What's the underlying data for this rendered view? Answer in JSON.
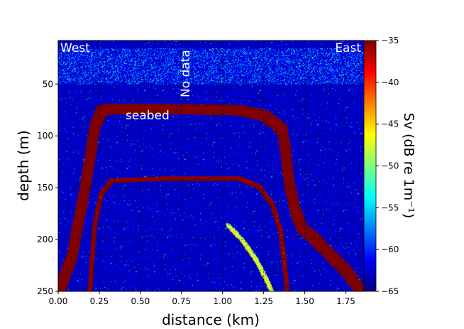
{
  "chart_data": {
    "type": "heatmap",
    "xlabel": "distance (km)",
    "ylabel": "depth (m)",
    "xlim": [
      0,
      1.86
    ],
    "ylim": [
      250,
      8
    ],
    "xticks": [
      "0.00",
      "0.25",
      "0.50",
      "0.75",
      "1.00",
      "1.25",
      "1.50",
      "1.75"
    ],
    "xtick_values": [
      0,
      0.25,
      0.5,
      0.75,
      1.0,
      1.25,
      1.5,
      1.75
    ],
    "yticks": [
      "50",
      "100",
      "150",
      "200",
      "250"
    ],
    "ytick_values": [
      50,
      100,
      150,
      200,
      250
    ],
    "grid": true,
    "colormap": "jet",
    "colorbar": {
      "label": "Sv (dB re 1m⁻¹)",
      "range": [
        -65,
        -35
      ],
      "ticks": [
        "−35",
        "−40",
        "−45",
        "−50",
        "−55",
        "−60",
        "−65"
      ],
      "tick_values": [
        -35,
        -40,
        -45,
        -50,
        -55,
        -60,
        -65
      ]
    },
    "annotations": {
      "west": "West",
      "east": "East",
      "no_data": "No data",
      "seabed": "seabed"
    },
    "seabed": {
      "sv": -36,
      "distance_km": [
        0.0,
        0.08,
        0.16,
        0.22,
        0.26,
        0.3,
        0.7,
        0.74,
        1.1,
        1.25,
        1.32,
        1.36,
        1.38,
        1.4,
        1.44,
        1.48,
        1.55,
        1.65,
        1.75,
        1.85
      ],
      "depth_m": [
        250,
        215,
        150,
        90,
        74,
        72,
        72,
        72,
        73,
        78,
        86,
        92,
        110,
        140,
        170,
        187,
        196,
        212,
        228,
        250
      ],
      "gap_km": [
        0.7,
        0.74
      ]
    },
    "second_echo": {
      "sv": -45,
      "distance_km": [
        0.19,
        0.22,
        0.26,
        0.32,
        0.7,
        0.74,
        1.1,
        1.22,
        1.3,
        1.35,
        1.38,
        1.39
      ],
      "depth_m": [
        250,
        185,
        155,
        142,
        140,
        140,
        140,
        148,
        165,
        190,
        230,
        250
      ]
    },
    "faint_arc": {
      "sv": -55,
      "distance_km": [
        1.03,
        1.12,
        1.2,
        1.26,
        1.3
      ],
      "depth_m": [
        185,
        200,
        218,
        236,
        250
      ]
    },
    "surface_noise": {
      "sv": -58,
      "depth_m": [
        15,
        50
      ]
    },
    "background_sv": -63
  }
}
